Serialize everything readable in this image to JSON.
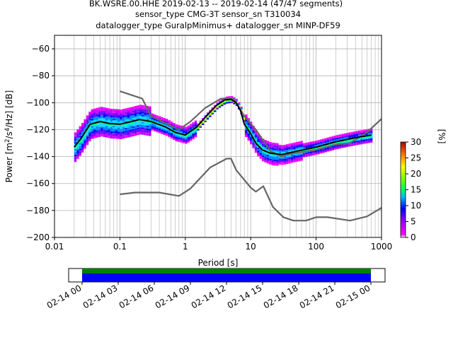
{
  "title_lines": [
    "BK.WSRE.00.HHE   2019-02-13 -- 2019-02-14  (47/47 segments)",
    "sensor_type CMG-3T sensor_sn T310034",
    "datalogger_type GuralpMinimus+ datalogger_sn MINP-DF59"
  ],
  "colors": {
    "nlnm_nhnm": "#666666",
    "mean_curve": "#000000",
    "grid": "#b0b0b0",
    "coverage_top": "#008000",
    "coverage_bottom": "#0000ff"
  },
  "chart_data": [
    {
      "type": "heatmap",
      "xlabel": "Period [s]",
      "ylabel": "Power [m²/s⁴/Hz] [dB]",
      "xscale": "log",
      "xlim": [
        0.01,
        1000
      ],
      "ylim": [
        -200,
        -50
      ],
      "xticks": [
        "0.01",
        "0.1",
        "1",
        "10",
        "100",
        "1000"
      ],
      "yticks": [
        "−60",
        "−80",
        "−100",
        "−120",
        "−140",
        "−160",
        "−180",
        "−200"
      ],
      "grid": true,
      "colorbar": {
        "label": "[%]",
        "range": [
          0,
          30
        ],
        "ticks": [
          "0",
          "5",
          "10",
          "15",
          "20",
          "25",
          "30"
        ]
      },
      "series": [
        {
          "x": [
            0.1,
            0.22,
            0.3,
            0.8,
            1.2,
            2.0,
            3.5,
            5.5,
            8.0,
            12,
            20,
            30,
            40,
            100,
            200,
            330,
            600,
            1000
          ],
          "y": [
            -91.5,
            -97,
            -110,
            -120,
            -114,
            -104,
            -97,
            -97,
            -110,
            -120,
            -136,
            -140,
            -138,
            -135,
            -131,
            -130,
            -122,
            -112
          ]
        },
        {
          "x": [
            0.1,
            0.17,
            0.4,
            0.8,
            1.2,
            2.4,
            4.3,
            5.0,
            6.0,
            10,
            12,
            15.6,
            21.9,
            31.6,
            45,
            70,
            100,
            150,
            330,
            600,
            1000
          ],
          "y": [
            -168,
            -166.7,
            -166.7,
            -169.2,
            -163.7,
            -148.1,
            -141.5,
            -141.5,
            -150,
            -163,
            -166,
            -162,
            -177.5,
            -185,
            -187.5,
            -187.5,
            -185,
            -185,
            -187.5,
            -184.4,
            -178
          ]
        },
        {
          "x": [
            0.02,
            0.025,
            0.03,
            0.035,
            0.05,
            0.07,
            0.1,
            0.15,
            0.2,
            0.3,
            0.5,
            0.7,
            1.0,
            1.5,
            2.0,
            3.0,
            4.0,
            5.0,
            6.0,
            7.0,
            8.0,
            10,
            12,
            15,
            20,
            30,
            50,
            100,
            200,
            400,
            700
          ],
          "y": [
            -133,
            -127,
            -121,
            -116,
            -114,
            -115.5,
            -116,
            -114,
            -112.5,
            -114,
            -118,
            -122,
            -124,
            -118,
            -111,
            -102,
            -98,
            -97.5,
            -100,
            -106,
            -116,
            -123,
            -130,
            -135,
            -137.5,
            -138.5,
            -136,
            -133,
            -129,
            -126,
            -124
          ]
        }
      ],
      "coverage": {
        "x_range": [
          "02-14 00",
          "02-15 00"
        ],
        "ticks": [
          "02-14 00",
          "02-14 03",
          "02-14 06",
          "02-14 09",
          "02-14 12",
          "02-14 15",
          "02-14 18",
          "02-14 21",
          "02-15 00"
        ]
      }
    }
  ]
}
